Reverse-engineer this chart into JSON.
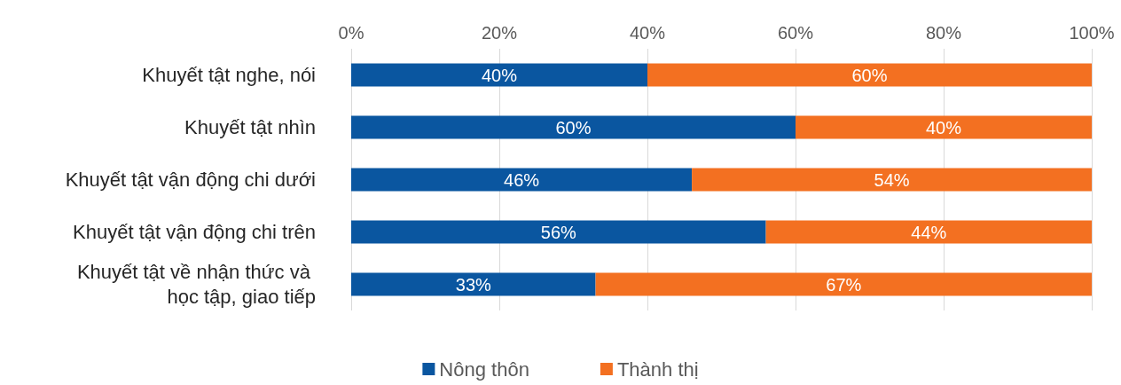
{
  "chart_data": {
    "type": "bar",
    "orientation": "horizontal",
    "stacked": true,
    "categories": [
      "Khuyết tật nghe, nói",
      "Khuyết tật nhìn",
      "Khuyết tật vận động chi dưới",
      "Khuyết tật vận động chi trên",
      "Khuyết tật về nhận thức và học tập, giao tiếp"
    ],
    "series": [
      {
        "name": "Nông thôn",
        "color": "#0a56a0",
        "values": [
          40,
          60,
          46,
          56,
          33
        ],
        "value_labels": [
          "40%",
          "60%",
          "46%",
          "56%",
          "33%"
        ]
      },
      {
        "name": "Thành thị",
        "color": "#f37021",
        "values": [
          60,
          40,
          54,
          44,
          67
        ],
        "value_labels": [
          "60%",
          "40%",
          "54%",
          "44%",
          "67%"
        ]
      }
    ],
    "xlim": [
      0,
      100
    ],
    "xticks": [
      {
        "value": 0,
        "label": "0%"
      },
      {
        "value": 20,
        "label": "20%"
      },
      {
        "value": 40,
        "label": "40%"
      },
      {
        "value": 60,
        "label": "60%"
      },
      {
        "value": 80,
        "label": "80%"
      },
      {
        "value": 100,
        "label": "100%"
      }
    ],
    "grid": "x",
    "legend": "bottom"
  }
}
